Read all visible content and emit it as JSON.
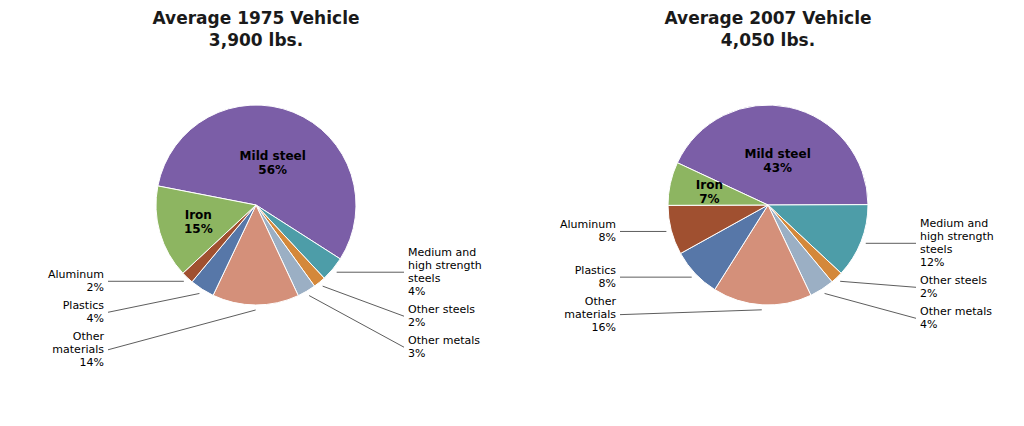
{
  "chart_data": [
    {
      "type": "pie",
      "title": "Average 1975 Vehicle",
      "subtitle": "3,900 lbs.",
      "categories": [
        "Mild steel",
        "Medium and\nhigh strength\nsteels",
        "Other steels",
        "Other metals",
        "Other\nmaterials",
        "Plastics",
        "Aluminum",
        "Iron"
      ],
      "values": [
        56,
        4,
        2,
        3,
        14,
        4,
        2,
        15
      ],
      "value_labels": [
        "56%",
        "4%",
        "2%",
        "3%",
        "14%",
        "4%",
        "2%",
        "15%"
      ],
      "colors": [
        "#7B5EA7",
        "#4D9DA8",
        "#D4883A",
        "#9BAFC4",
        "#D4907A",
        "#5777A8",
        "#A05030",
        "#8DB561"
      ]
    },
    {
      "type": "pie",
      "title": "Average 2007 Vehicle",
      "subtitle": "4,050 lbs.",
      "categories": [
        "Mild steel",
        "Medium and\nhigh strength\nsteels",
        "Other steels",
        "Other metals",
        "Other\nmaterials",
        "Plastics",
        "Aluminum",
        "Iron"
      ],
      "values": [
        43,
        12,
        2,
        4,
        16,
        8,
        8,
        7
      ],
      "value_labels": [
        "43%",
        "12%",
        "2%",
        "4%",
        "16%",
        "8%",
        "8%",
        "7%"
      ],
      "colors": [
        "#7B5EA7",
        "#4D9DA8",
        "#D4883A",
        "#9BAFC4",
        "#D4907A",
        "#5777A8",
        "#A05030",
        "#8DB561"
      ]
    }
  ]
}
